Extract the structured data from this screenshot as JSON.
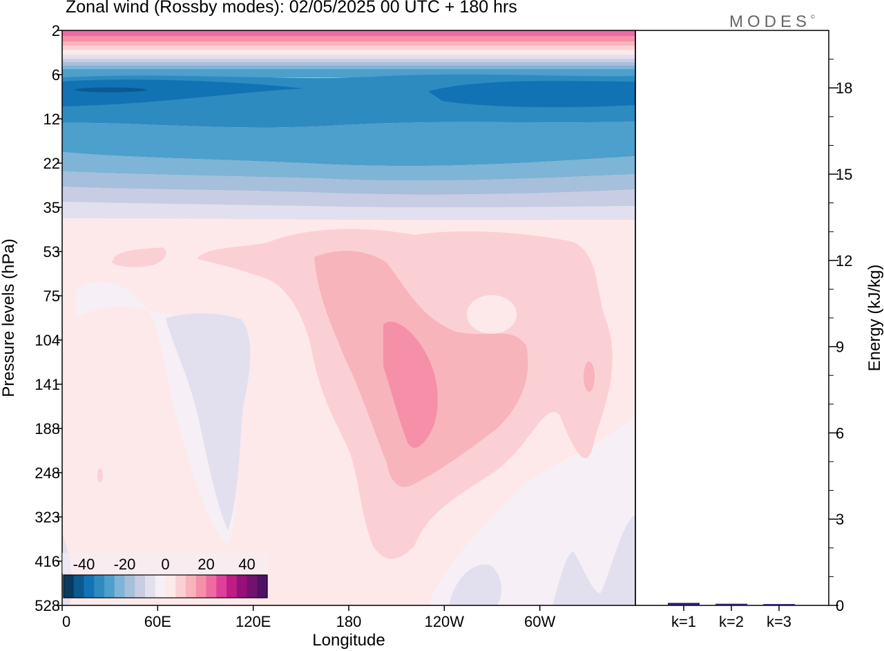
{
  "title": "Zonal wind (Rossby modes):  02/05/2025  00 UTC  + 180 hrs",
  "logo": "MODES",
  "logo_mark": "©",
  "chart_data": [
    {
      "type": "heatmap",
      "title": "Zonal wind (Rossby modes):  02/05/2025  00 UTC  + 180 hrs",
      "xlabel": "Longitude",
      "ylabel": "Pressure levels (hPa)",
      "x_ticks": [
        "0",
        "60E",
        "120E",
        "180",
        "120W",
        "60W"
      ],
      "y_ticks": [
        "2",
        "6",
        "12",
        "22",
        "35",
        "53",
        "75",
        "104",
        "141",
        "188",
        "248",
        "323",
        "416",
        "528"
      ],
      "y_scale": "log",
      "colorbar": {
        "labels": [
          "-40",
          "-20",
          "0",
          "20",
          "40"
        ],
        "range": [
          -50,
          50
        ],
        "colors": [
          "#0b3a5f",
          "#0b5a8f",
          "#1172b4",
          "#2d8bc0",
          "#4d9fcc",
          "#7eb4d6",
          "#a6bfdb",
          "#c8cde3",
          "#e2e0ee",
          "#f6eff5",
          "#fde9ea",
          "#fbd0d4",
          "#f8b4bb",
          "#f590a8",
          "#ee6aa2",
          "#de3f98",
          "#bf1d86",
          "#961077",
          "#73116e",
          "#4d1266"
        ]
      },
      "bands": [
        {
          "pressure_top": 2,
          "pressure_bottom": 3,
          "value": 22
        },
        {
          "pressure_top": 3,
          "pressure_bottom": 4,
          "value": 4
        },
        {
          "pressure_top": 4,
          "pressure_bottom": 6,
          "value": -12
        },
        {
          "pressure_top": 6,
          "pressure_bottom": 12,
          "value": -35
        },
        {
          "pressure_top": 12,
          "pressure_bottom": 20,
          "value": -28
        },
        {
          "pressure_top": 20,
          "pressure_bottom": 30,
          "value": -15
        },
        {
          "pressure_top": 30,
          "pressure_bottom": 38,
          "value": -3
        },
        {
          "pressure_top": 38,
          "pressure_bottom": 528,
          "value": 2
        }
      ]
    },
    {
      "type": "bar",
      "categories": [
        "k=1",
        "k=2",
        "k=3"
      ],
      "values": [
        0.05,
        0.02,
        0.01
      ],
      "ylabel": "Energy (kJ/kg)",
      "y_ticks": [
        "0",
        "3",
        "6",
        "9",
        "12",
        "15",
        "18"
      ],
      "ylim": [
        0,
        20
      ]
    }
  ]
}
